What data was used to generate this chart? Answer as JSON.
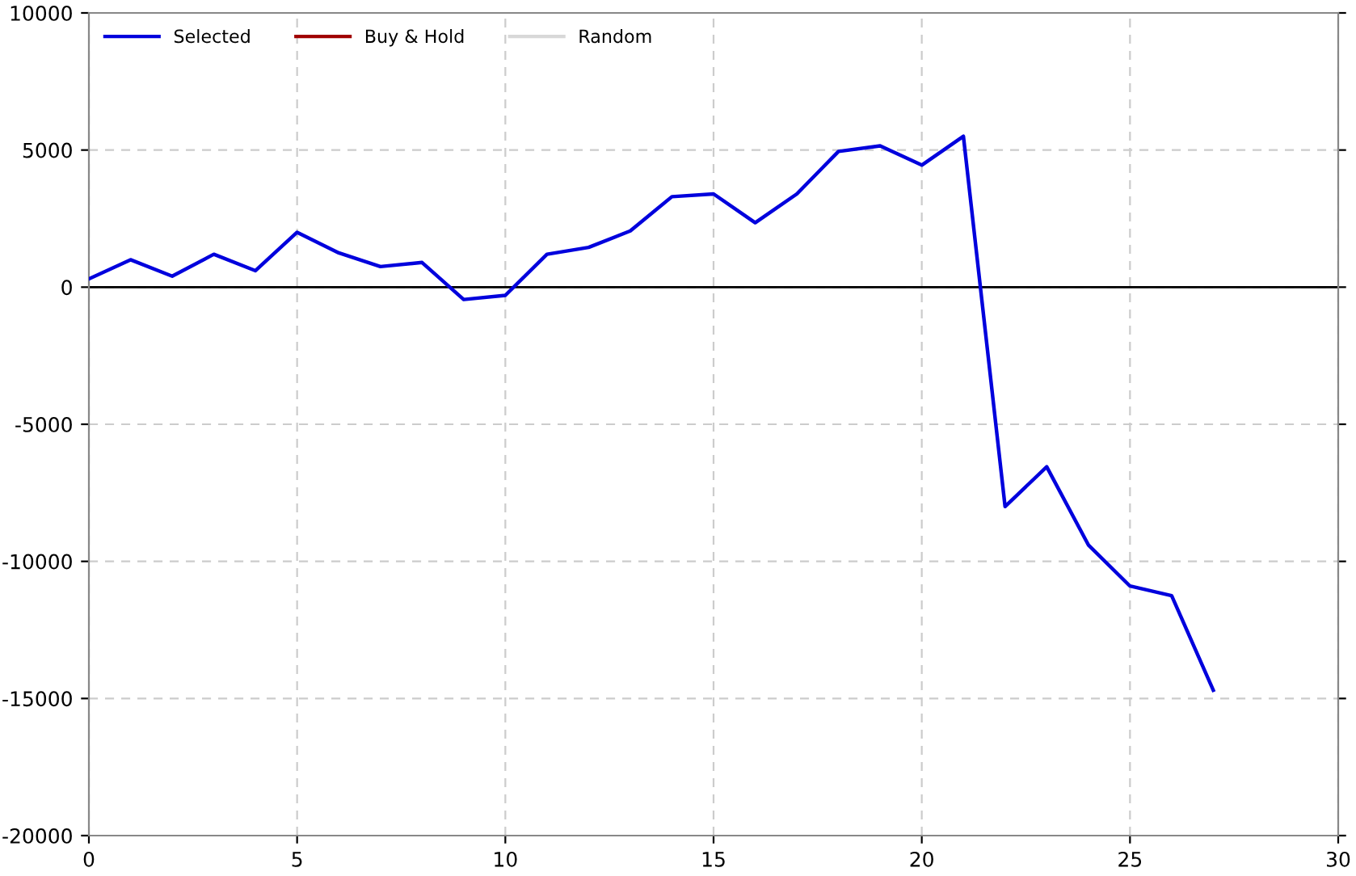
{
  "chart_data": {
    "type": "line",
    "x": [
      0,
      1,
      2,
      3,
      4,
      5,
      6,
      7,
      8,
      9,
      10,
      11,
      12,
      13,
      14,
      15,
      16,
      17,
      18,
      19,
      20,
      21,
      22,
      23,
      24,
      25,
      26,
      27
    ],
    "series": [
      {
        "name": "Selected",
        "color": "#0000dd",
        "values": [
          300,
          1000,
          400,
          1200,
          600,
          2000,
          1250,
          750,
          900,
          -450,
          -300,
          1200,
          1450,
          2050,
          3300,
          3400,
          2350,
          3400,
          4950,
          5150,
          4450,
          5500,
          -8000,
          -6550,
          -9400,
          -10900,
          -11250,
          -14700
        ]
      },
      {
        "name": "Buy & Hold",
        "color": "#a00000",
        "values": [
          null,
          null,
          null,
          null,
          null,
          null,
          null,
          null,
          null,
          null,
          null,
          null,
          null,
          null,
          null,
          null,
          null,
          null,
          null,
          null,
          null,
          null,
          null,
          null,
          null,
          null,
          null,
          null
        ]
      },
      {
        "name": "Random",
        "color": "#d8d8d8",
        "values": [
          null,
          null,
          null,
          null,
          null,
          null,
          null,
          null,
          null,
          null,
          null,
          null,
          null,
          null,
          null,
          null,
          null,
          null,
          null,
          null,
          null,
          null,
          null,
          null,
          null,
          null,
          null,
          null
        ]
      }
    ],
    "xlim": [
      0,
      30
    ],
    "xticks": [
      0,
      5,
      10,
      15,
      20,
      25,
      30
    ],
    "ylim": [
      -20000,
      10000
    ],
    "yticks": [
      -20000,
      -15000,
      -10000,
      -5000,
      0,
      5000,
      10000
    ],
    "ref_lines": [
      {
        "axis": "y",
        "value": 0,
        "color": "#000000",
        "line_style": "solid"
      }
    ],
    "grid": true,
    "legend": "top left",
    "line_style": "solid"
  }
}
